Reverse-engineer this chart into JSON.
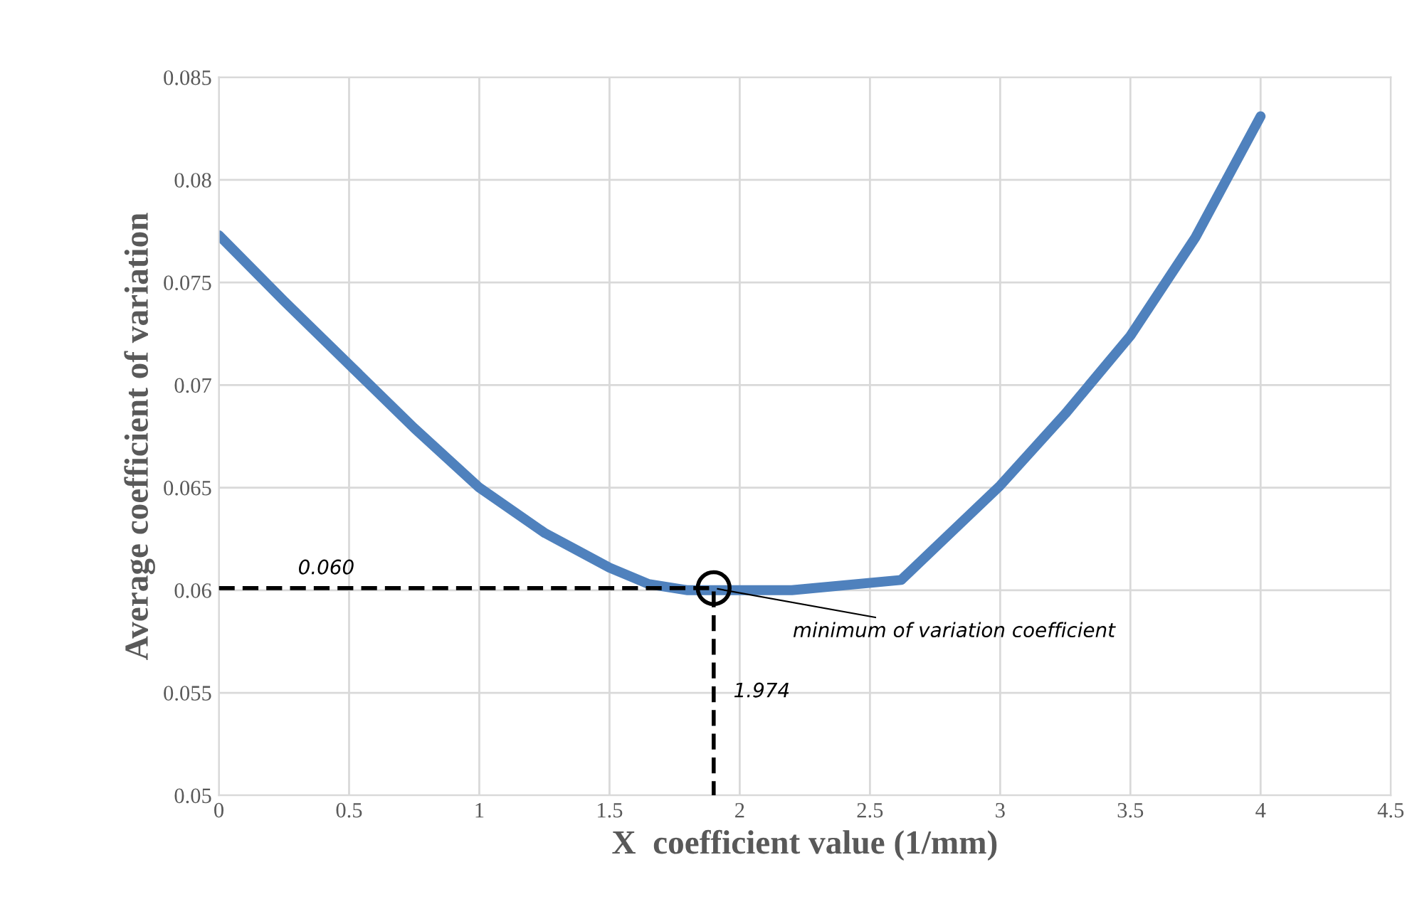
{
  "chart_data": {
    "type": "line",
    "xlabel": "X  coefficient value (1/mm)",
    "ylabel": "Average coefficient of variation",
    "series": [
      {
        "color": "#4f81bd",
        "x": [
          0,
          0.25,
          0.5,
          0.75,
          1,
          1.25,
          1.5,
          1.65,
          1.8,
          1.9,
          2.2,
          2.62,
          3,
          3.25,
          3.5,
          3.75,
          4
        ],
        "values": [
          0.0773,
          0.0741,
          0.071,
          0.0679,
          0.065,
          0.0628,
          0.0611,
          0.0603,
          0.06,
          0.06,
          0.06,
          0.0605,
          0.0651,
          0.0686,
          0.0724,
          0.0772,
          0.0831
        ]
      },
      {
        "type": "line",
        "color": "#000000",
        "line_style": "dashed",
        "x": [
          0,
          1.9,
          1.9
        ],
        "values": [
          0.0601,
          0.0601,
          0.05
        ]
      },
      {
        "type": "scatter",
        "color": "#000000",
        "marker": "circle",
        "x": [
          1.9
        ],
        "values": [
          0.0601
        ]
      }
    ],
    "annotations": [
      "0.060",
      "1.974",
      {
        "text": "minimum of variation coefficient",
        "x": 1.9,
        "y": 0.0601
      }
    ],
    "xlim": [
      0,
      4.5
    ],
    "xticks": [
      0,
      0.5,
      1,
      1.5,
      2,
      2.5,
      3,
      3.5,
      4,
      4.5
    ],
    "ylim": [
      0.05,
      0.085
    ],
    "yticks": [
      0.05,
      0.055,
      0.06,
      0.065,
      0.07,
      0.075,
      0.08,
      0.085
    ],
    "grid": true
  }
}
